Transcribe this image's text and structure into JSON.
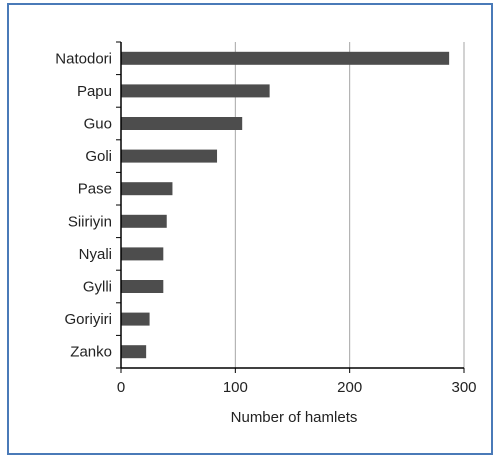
{
  "chart_data": {
    "type": "bar",
    "orientation": "horizontal",
    "categories": [
      "Natodori",
      "Papu",
      "Guo",
      "Goli",
      "Pase",
      "Siiriyin",
      "Nyali",
      "Gylli",
      "Goriyiri",
      "Zanko"
    ],
    "values": [
      287,
      130,
      106,
      84,
      45,
      40,
      37,
      37,
      25,
      22
    ],
    "xlabel": "Number of hamlets",
    "ylabel": "",
    "title": "",
    "xlim": [
      0,
      300
    ],
    "x_ticks": [
      "0",
      "100",
      "200",
      "300"
    ],
    "grid": "vertical",
    "legend": "none",
    "colors": {
      "bar": "#4d4d4d",
      "grid": "#a6a6a6",
      "axis": "#000000",
      "frame": "#4a7ab8"
    }
  }
}
